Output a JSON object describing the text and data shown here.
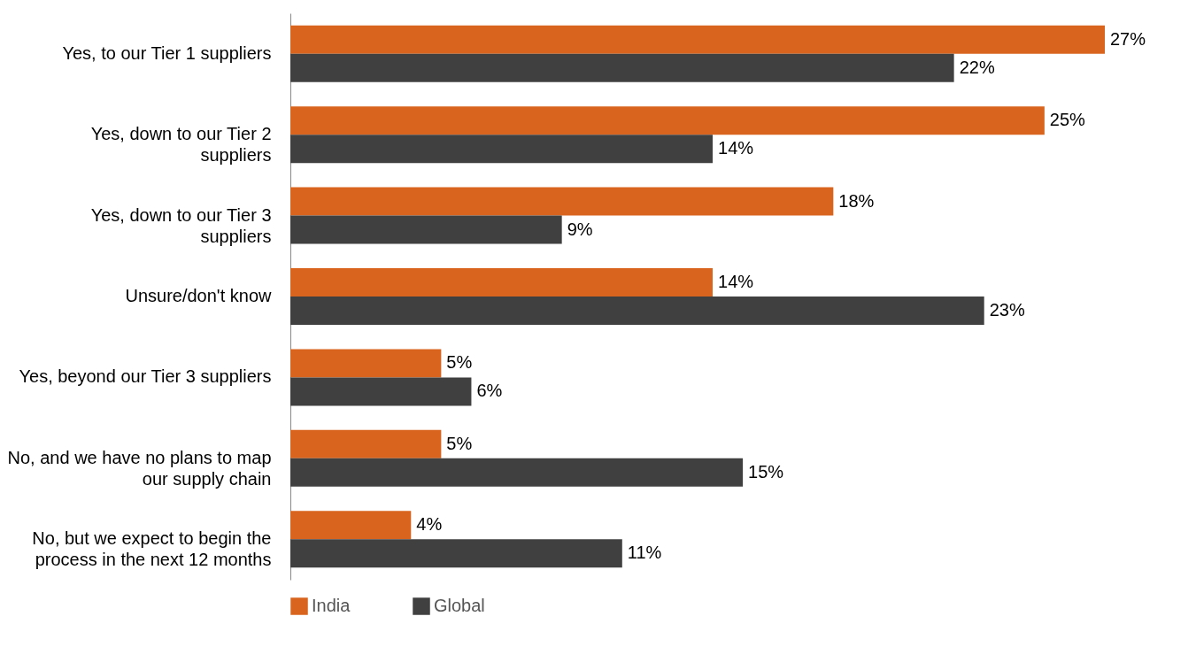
{
  "chart_data": {
    "type": "bar",
    "orientation": "horizontal",
    "legend": "bottom",
    "categories": [
      "Yes, to our Tier 1 suppliers",
      "Yes, down to our Tier 2 suppliers",
      "Yes, down to our Tier 3 suppliers",
      "Unsure/don't know",
      "Yes, beyond our Tier 3 suppliers",
      "No, and we have no plans to map our supply chain",
      "No, but we expect to begin the process in the next 12 months"
    ],
    "series": [
      {
        "name": "India",
        "color": "#d9641e",
        "values": [
          27,
          25,
          18,
          14,
          5,
          5,
          4
        ],
        "value_labels": [
          "27%",
          "25%",
          "18%",
          "14%",
          "5%",
          "5%",
          "4%"
        ]
      },
      {
        "name": "Global",
        "color": "#404041",
        "values": [
          22,
          14,
          9,
          23,
          6,
          15,
          11
        ],
        "value_labels": [
          "22%",
          "14%",
          "9%",
          "23%",
          "6%",
          "15%",
          "11%"
        ]
      }
    ]
  }
}
